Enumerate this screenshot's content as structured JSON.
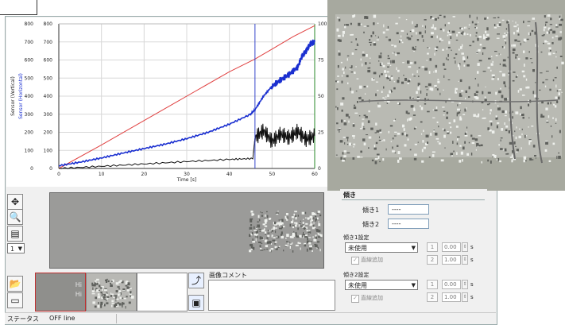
{
  "chart_data": {
    "type": "line",
    "xlabel": "Time [s]",
    "ylabel_left_outer": "Sensor (Vertical)",
    "ylabel_left_inner": "Sensor (Horizontal)",
    "x_ticks": [
      "0",
      "10",
      "20",
      "30",
      "40",
      "50",
      "60"
    ],
    "y_ticks_outer": [
      "0",
      "100",
      "200",
      "300",
      "400",
      "500",
      "600",
      "700",
      "800"
    ],
    "y_ticks_inner": [
      "0",
      "100",
      "200",
      "300",
      "400",
      "500",
      "600",
      "700",
      "800"
    ],
    "y_ticks_right": [
      "0",
      "25",
      "50",
      "75",
      "100"
    ],
    "xlim": [
      0,
      60
    ],
    "ylim": [
      0,
      800
    ],
    "ylim_right": [
      0,
      100
    ],
    "cursor_x": 46,
    "series": [
      {
        "color": "#e04040",
        "x": [
          0,
          10,
          20,
          30,
          40,
          46,
          50,
          55,
          60
        ],
        "y": [
          0,
          130,
          265,
          400,
          535,
          605,
          660,
          730,
          790
        ]
      },
      {
        "color": "#1a2fd0",
        "x": [
          0,
          5,
          10,
          15,
          20,
          25,
          30,
          35,
          40,
          45,
          46,
          48,
          50,
          52,
          54,
          56,
          57,
          58,
          59,
          60
        ],
        "y": [
          15,
          35,
          58,
          85,
          110,
          135,
          165,
          200,
          245,
          300,
          325,
          400,
          455,
          490,
          520,
          560,
          620,
          650,
          690,
          700
        ]
      },
      {
        "color": "#111111",
        "x": [
          0,
          10,
          20,
          30,
          40,
          45.5,
          46,
          48,
          50,
          52,
          54,
          56,
          58,
          60
        ],
        "y": [
          0,
          12,
          25,
          38,
          50,
          55,
          170,
          210,
          150,
          190,
          170,
          205,
          160,
          180
        ]
      }
    ]
  },
  "tools": {
    "zoom_value": "1",
    "buttons": [
      "move-icon",
      "magnifier-icon",
      "clipboard-icon",
      "folder-icon",
      "document-icon"
    ]
  },
  "thumbnails": {
    "first_labels": [
      "Hi",
      "Hi"
    ],
    "upload_icon": "arrow-icon",
    "save_icon": "monitor-icon"
  },
  "comment": {
    "label": "画像コメント"
  },
  "panel": {
    "title": "傾き",
    "slope1_label": "傾き1",
    "slope1_value": "----",
    "slope2_label": "傾き2",
    "slope2_value": "----",
    "section1_label": "傾き1設定",
    "section1_select": "未使用",
    "section1_check": "直線追加",
    "section1_index_a": "1",
    "section1_value_a": "0.00",
    "section1_unit_a": "s",
    "section1_index_b": "2",
    "section1_value_b": "1.00",
    "section1_unit_b": "s",
    "section2_label": "傾き2設定",
    "section2_select": "未使用",
    "section2_check": "直線追加",
    "section2_index_a": "1",
    "section2_value_a": "0.00",
    "section2_unit_a": "s",
    "section2_index_b": "2",
    "section2_value_b": "1.00",
    "section2_unit_b": "s"
  },
  "status": {
    "label": "ステータス",
    "value": "OFF line"
  }
}
